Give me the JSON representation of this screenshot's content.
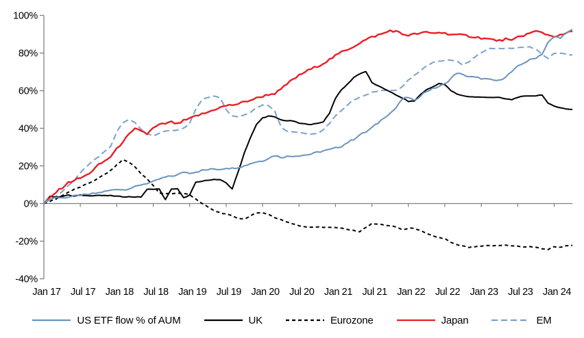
{
  "chart_data": {
    "type": "line",
    "title": "",
    "xlabel": "",
    "ylabel": "",
    "grid": false,
    "legend_position": "bottom",
    "y_axis": {
      "min": -40,
      "max": 100,
      "tick_step": 20,
      "unit": "%",
      "tick_labels": [
        "100%",
        "80%",
        "60%",
        "40%",
        "20%",
        "0%",
        "-20%",
        "-40%"
      ]
    },
    "x_axis": {
      "months_per_tick": 6,
      "total_months": 87,
      "tick_labels": [
        "Jan 17",
        "Jul 17",
        "Jan 18",
        "Jul 18",
        "Jan 19",
        "Jul 19",
        "Jan 20",
        "Jul 20",
        "Jan 21",
        "Jul 21",
        "Jan 22",
        "Jul 22",
        "Jan 23",
        "Jul 23",
        "Jan 24"
      ]
    },
    "series": [
      {
        "name": "US ETF flow % of AUM",
        "color": "#6992be",
        "style": "solid",
        "values": [
          0,
          2.5,
          3.3,
          3.0,
          3.5,
          3.9,
          4.5,
          4.6,
          5.2,
          5.7,
          6.4,
          7.0,
          7.8,
          7.3,
          8.0,
          8.8,
          10.0,
          10.8,
          11.5,
          13.0,
          14.0,
          14.6,
          15.2,
          16.8,
          16.3,
          16.8,
          17.6,
          18.0,
          18.4,
          18.2,
          19.0,
          18.7,
          19.3,
          20.0,
          21.3,
          22.2,
          22.7,
          24.2,
          25.6,
          24.6,
          25.0,
          25.3,
          25.5,
          25.8,
          26.3,
          27.2,
          28.0,
          28.6,
          29.5,
          30.5,
          32.5,
          34.2,
          36.6,
          38.0,
          40.3,
          42.8,
          45.8,
          48.0,
          51.0,
          55.5,
          56.5,
          54.5,
          57.5,
          59.7,
          61.0,
          62.2,
          63.5,
          66.5,
          69.5,
          68.3,
          67.5,
          67.0,
          66.5,
          66.0,
          65.5,
          65.3,
          67.5,
          70.0,
          72.8,
          74.8,
          76.3,
          77.5,
          79.5,
          85.5,
          88.6,
          88.2,
          90.3,
          92.5
        ]
      },
      {
        "name": "UK",
        "color": "#000000",
        "style": "solid",
        "values": [
          0,
          3.9,
          3.3,
          3.9,
          4.5,
          3.9,
          4.5,
          4.2,
          4.2,
          4.4,
          4.2,
          4.2,
          3.9,
          3.6,
          3.6,
          3.5,
          3.5,
          7.5,
          7.7,
          7.7,
          2.0,
          7.8,
          7.8,
          3.0,
          4.5,
          11.2,
          11.8,
          12.5,
          12.8,
          12.6,
          11.0,
          7.8,
          17.0,
          27.0,
          35.0,
          42.0,
          45.5,
          46.5,
          46.0,
          44.5,
          44.0,
          43.9,
          42.7,
          42.3,
          42.1,
          42.5,
          43.5,
          48.0,
          56.0,
          60.5,
          63.5,
          67.0,
          69.0,
          70.2,
          64.3,
          62.5,
          61.0,
          59.5,
          57.5,
          56.1,
          54.3,
          54.5,
          58.0,
          60.5,
          62.0,
          63.8,
          63.2,
          60.0,
          58.2,
          57.3,
          56.8,
          56.6,
          56.5,
          56.5,
          56.4,
          56.3,
          55.6,
          55.2,
          56.5,
          57.0,
          57.2,
          57.3,
          57.8,
          53.2,
          51.8,
          51.0,
          50.2,
          50.0
        ]
      },
      {
        "name": "Eurozone",
        "color": "#000000",
        "style": "dashed",
        "values": [
          0,
          1.2,
          2.5,
          4.2,
          6.0,
          7.5,
          8.8,
          10.2,
          11.8,
          13.5,
          15.5,
          17.5,
          20.5,
          23.3,
          22.0,
          19.5,
          16.0,
          13.0,
          9.5,
          5.5,
          5.3,
          5.3,
          5.5,
          5.3,
          4.7,
          2.5,
          0.0,
          -1.8,
          -3.8,
          -4.8,
          -5.6,
          -6.6,
          -7.8,
          -8.2,
          -6.5,
          -5.2,
          -4.7,
          -5.8,
          -7.5,
          -8.5,
          -9.8,
          -10.8,
          -11.8,
          -12.3,
          -12.5,
          -12.4,
          -12.7,
          -12.5,
          -12.8,
          -13.2,
          -13.8,
          -14.4,
          -14.9,
          -12.6,
          -10.7,
          -11.0,
          -11.3,
          -11.9,
          -12.5,
          -13.9,
          -13.3,
          -13.1,
          -14.4,
          -16.1,
          -17.2,
          -18.0,
          -18.7,
          -20.7,
          -22.0,
          -22.6,
          -23.3,
          -22.9,
          -22.7,
          -22.4,
          -22.4,
          -22.3,
          -22.1,
          -22.4,
          -22.7,
          -23.2,
          -22.8,
          -23.4,
          -23.9,
          -24.4,
          -22.9,
          -23.3,
          -22.4,
          -22.2
        ]
      },
      {
        "name": "Japan",
        "color": "#ed1c24",
        "style": "solid",
        "values": [
          0,
          3.0,
          6.0,
          8.5,
          11.0,
          12.5,
          13.5,
          15.0,
          17.5,
          20.5,
          22.5,
          25.0,
          29.0,
          33.0,
          36.5,
          39.5,
          38.8,
          37.0,
          40.0,
          41.8,
          42.5,
          43.3,
          42.2,
          44.0,
          45.0,
          46.5,
          47.5,
          48.5,
          50.0,
          51.0,
          52.0,
          52.4,
          53.0,
          54.0,
          55.0,
          56.0,
          57.0,
          58.0,
          58.5,
          60.5,
          63.5,
          66.0,
          68.0,
          70.0,
          71.5,
          73.0,
          74.5,
          76.5,
          78.5,
          80.5,
          82.0,
          83.5,
          85.5,
          87.0,
          88.5,
          89.5,
          90.5,
          92.0,
          91.5,
          90.0,
          89.5,
          90.0,
          90.5,
          91.0,
          90.5,
          91.0,
          90.5,
          90.0,
          89.5,
          89.5,
          89.0,
          88.5,
          88.0,
          87.5,
          87.0,
          86.5,
          87.5,
          86.3,
          88.5,
          89.5,
          90.5,
          91.5,
          91.0,
          89.5,
          89.0,
          89.3,
          90.5,
          91.5
        ]
      },
      {
        "name": "EM",
        "color": "#78a0cd",
        "style": "dashed_long",
        "values": [
          0,
          2.0,
          4.0,
          6.5,
          9.5,
          12.0,
          16.5,
          19.5,
          22.5,
          25.0,
          27.5,
          30.5,
          38.0,
          43.0,
          44.5,
          43.0,
          39.5,
          37.0,
          36.1,
          37.3,
          38.3,
          38.8,
          39.3,
          40.0,
          42.7,
          50.0,
          55.0,
          56.5,
          57.0,
          56.0,
          50.0,
          46.5,
          46.0,
          47.0,
          48.5,
          51.0,
          52.5,
          52.0,
          49.0,
          41.0,
          38.5,
          38.0,
          37.6,
          37.2,
          36.8,
          37.3,
          39.1,
          42.7,
          46.4,
          49.4,
          52.4,
          55.0,
          56.5,
          57.5,
          59.0,
          59.8,
          60.0,
          60.2,
          60.3,
          62.0,
          65.5,
          68.0,
          70.5,
          73.0,
          75.0,
          75.8,
          76.1,
          76.2,
          75.6,
          73.6,
          75.5,
          78.0,
          80.3,
          82.1,
          82.4,
          82.5,
          82.6,
          82.7,
          82.8,
          83.1,
          83.2,
          82.0,
          79.0,
          77.3,
          79.8,
          79.8,
          79.2,
          79.0
        ]
      }
    ],
    "colors": {
      "axis_line": "#808080",
      "zero_line": "#808080",
      "tick": "#808080",
      "text": "#000000"
    }
  }
}
